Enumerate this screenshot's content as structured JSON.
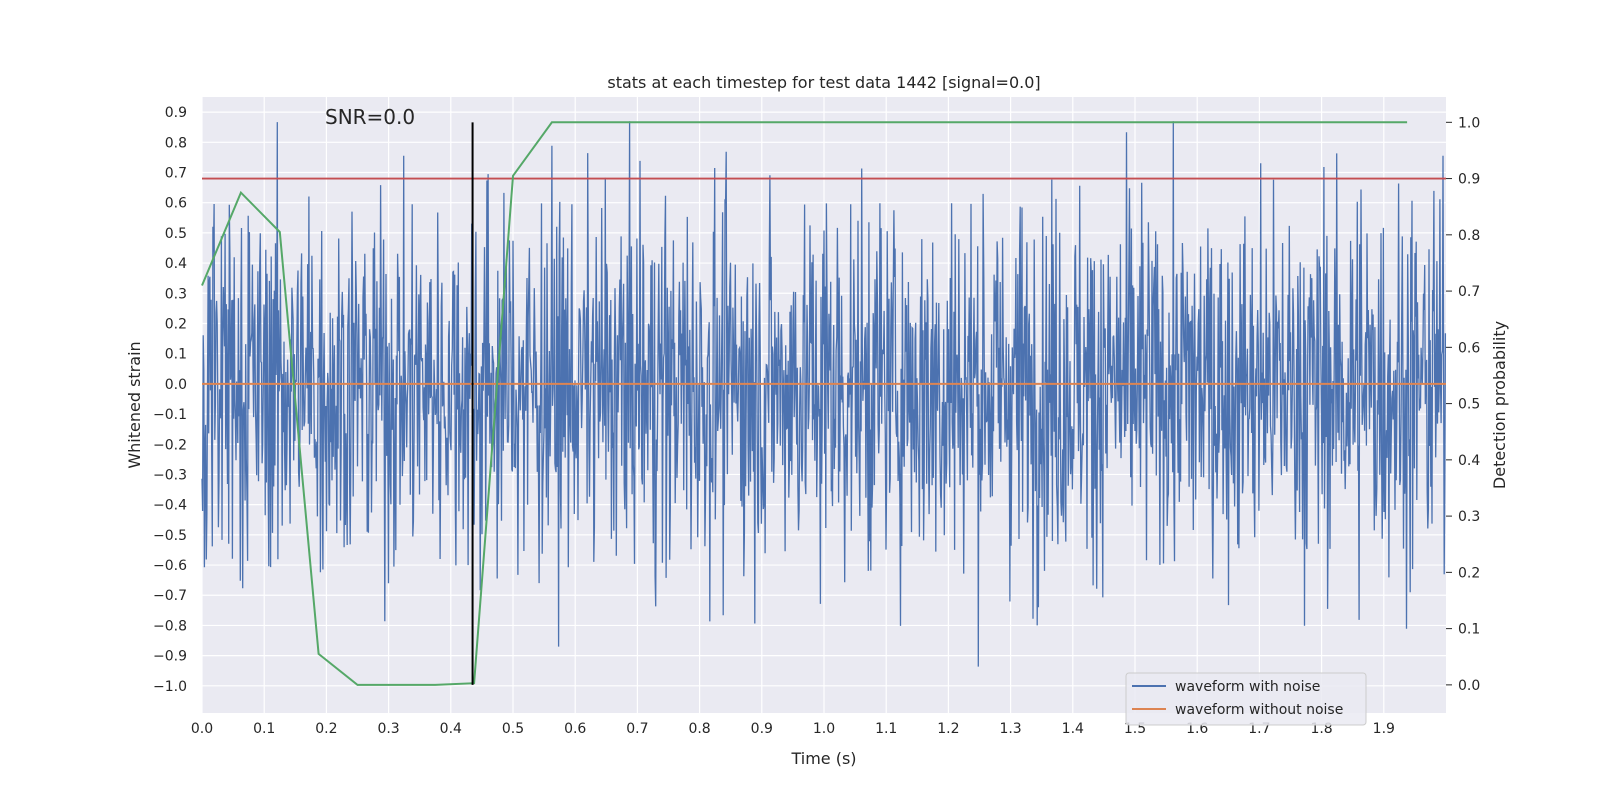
{
  "chart_data": {
    "type": "line",
    "title": "stats at each timestep for test data 1442 [signal=0.0]",
    "xlabel": "Time (s)",
    "ylabel": "Whitened strain",
    "y2label": "Detection probability",
    "annotation": "SNR=0.0",
    "xlim": [
      0.0,
      2.0
    ],
    "ylim": [
      -1.09,
      0.95
    ],
    "y2lim": [
      -0.05,
      1.045
    ],
    "x_ticks": [
      "0.0",
      "0.1",
      "0.2",
      "0.3",
      "0.4",
      "0.5",
      "0.6",
      "0.7",
      "0.8",
      "0.9",
      "1.0",
      "1.1",
      "1.2",
      "1.3",
      "1.4",
      "1.5",
      "1.6",
      "1.7",
      "1.8",
      "1.9"
    ],
    "y_ticks": [
      "0.9",
      "0.8",
      "0.7",
      "0.6",
      "0.5",
      "0.4",
      "0.3",
      "0.2",
      "0.1",
      "0.0",
      "−0.1",
      "−0.2",
      "−0.3",
      "−0.4",
      "−0.5",
      "−0.6",
      "−0.7",
      "−0.8",
      "−0.9",
      "−1.0"
    ],
    "y2_ticks": [
      "1.0",
      "0.9",
      "0.8",
      "0.7",
      "0.6",
      "0.5",
      "0.4",
      "0.3",
      "0.2",
      "0.1",
      "0.0"
    ],
    "noise_amplitude": 0.3,
    "noise_samples": 2048,
    "series": [
      {
        "name": "waveform with noise",
        "color": "#4c72b0",
        "axis": "left"
      },
      {
        "name": "waveform without noise",
        "color": "#dd8452",
        "axis": "left",
        "value": 0.0
      },
      {
        "name": "detection probability",
        "color": "#55a868",
        "axis": "right",
        "x": [
          0.0,
          0.0625,
          0.125,
          0.1875,
          0.25,
          0.3125,
          0.375,
          0.4375,
          0.5,
          0.5625,
          1.9375
        ],
        "values": [
          0.71,
          0.875,
          0.805,
          0.055,
          0.0,
          0.0,
          0.0,
          0.003,
          0.905,
          1.0,
          1.0
        ]
      }
    ],
    "threshold": {
      "value": 0.9,
      "axis": "right",
      "color": "#c44e52"
    },
    "marker_line": {
      "x": 0.435,
      "color": "#000000"
    }
  }
}
